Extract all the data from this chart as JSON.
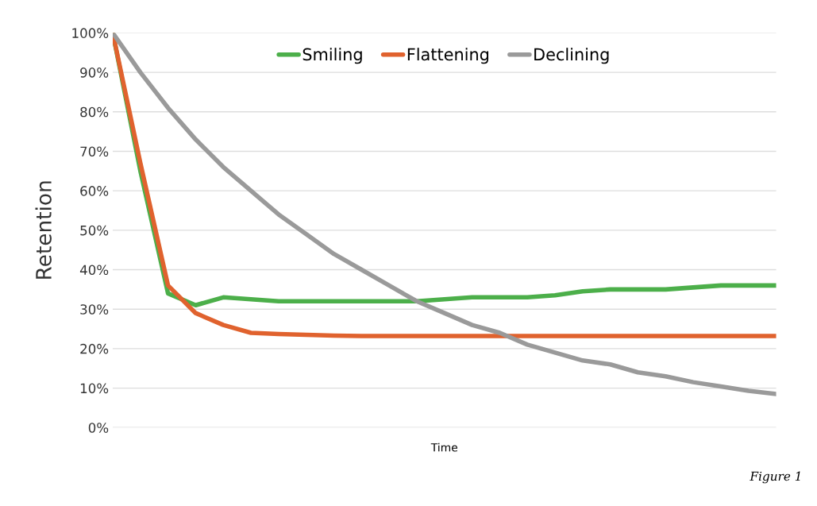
{
  "chart_data": {
    "type": "line",
    "xlabel": "Time",
    "ylabel": "Retention",
    "categories": [
      null,
      null,
      null,
      null,
      null,
      null,
      null,
      null,
      null,
      null,
      null,
      null,
      null,
      null,
      null,
      null,
      null,
      null,
      null,
      null,
      null,
      null,
      null,
      null,
      null
    ],
    "series": [
      {
        "name": "Smiling",
        "color": "#4caf4a",
        "values": [
          100,
          65,
          34,
          31,
          33,
          32.5,
          32,
          32,
          32,
          32,
          32,
          32,
          32.5,
          33,
          33,
          33,
          33.5,
          34.5,
          35,
          35,
          35,
          35.5,
          36,
          36,
          36
        ]
      },
      {
        "name": "Flattening",
        "color": "#e0622e",
        "values": [
          100,
          67,
          36,
          29,
          26,
          24,
          23.7,
          23.5,
          23.3,
          23.2,
          23.2,
          23.2,
          23.2,
          23.2,
          23.2,
          23.2,
          23.2,
          23.2,
          23.2,
          23.2,
          23.2,
          23.2,
          23.2,
          23.2,
          23.2
        ]
      },
      {
        "name": "Declining",
        "color": "#9a9a9a",
        "values": [
          100,
          90,
          81,
          73,
          66,
          60,
          54,
          49,
          44,
          40,
          36,
          32,
          29,
          26,
          24,
          21,
          19,
          17,
          16,
          14,
          13,
          11.5,
          10.4,
          9.3,
          8.5
        ]
      }
    ],
    "ylim": [
      0,
      100
    ],
    "yticks": [
      {
        "value": 0,
        "label": "0%"
      },
      {
        "value": 10,
        "label": "10%"
      },
      {
        "value": 20,
        "label": "20%"
      },
      {
        "value": 30,
        "label": "30%"
      },
      {
        "value": 40,
        "label": "40%"
      },
      {
        "value": 50,
        "label": "50%"
      },
      {
        "value": 60,
        "label": "60%"
      },
      {
        "value": 70,
        "label": "70%"
      },
      {
        "value": 80,
        "label": "80%"
      },
      {
        "value": 90,
        "label": "90%"
      },
      {
        "value": 100,
        "label": "100%"
      }
    ],
    "tick_labels": "y",
    "grid": "y",
    "legend": "top",
    "marker": "none",
    "line_style": "solid",
    "annotations": [
      "Figure 1"
    ]
  }
}
